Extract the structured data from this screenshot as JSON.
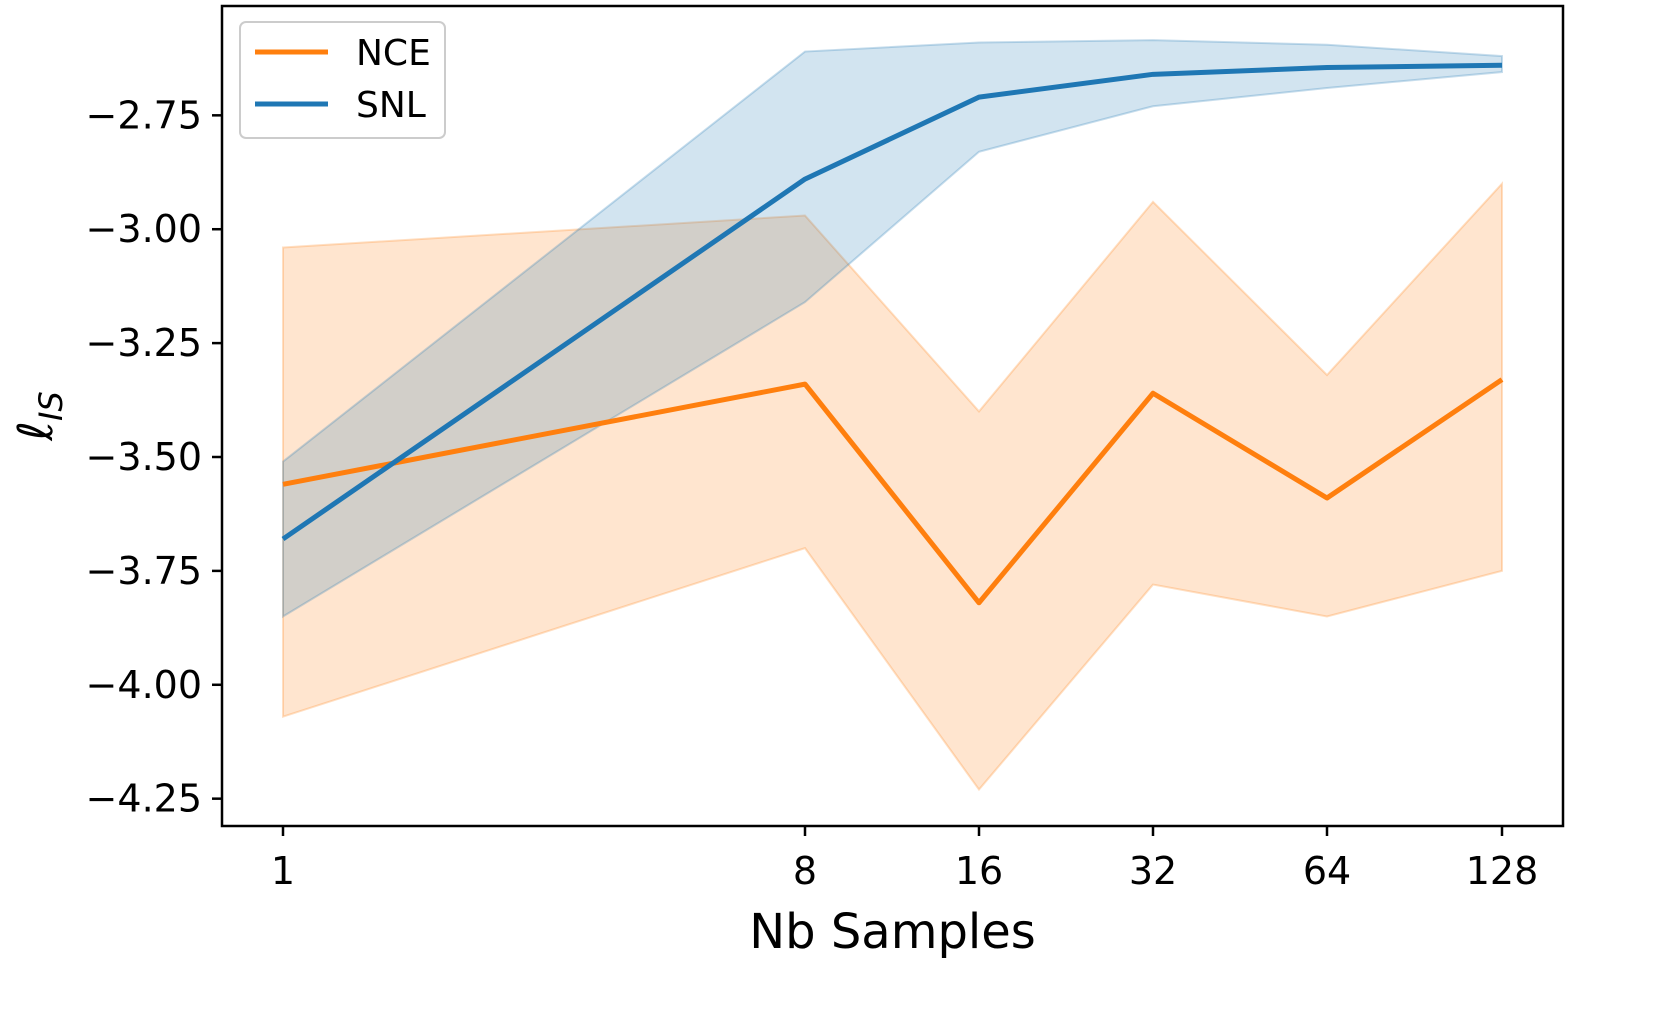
{
  "chart_data": {
    "type": "line",
    "title": "",
    "xlabel": "Nb Samples",
    "ylabel": "ℓ_IS",
    "ylabel_main": "ℓ",
    "ylabel_sub": "IS",
    "x": [
      1,
      8,
      16,
      32,
      64,
      128
    ],
    "x_tick_labels": [
      "1",
      "8",
      "16",
      "32",
      "64",
      "128"
    ],
    "y_ticks": [
      -4.25,
      -4.0,
      -3.75,
      -3.5,
      -3.25,
      -3.0,
      -2.75
    ],
    "y_tick_labels": [
      "−4.25",
      "−4.00",
      "−3.75",
      "−3.50",
      "−3.25",
      "−3.00",
      "−2.75"
    ],
    "ylim": [
      -4.31,
      -2.51
    ],
    "grid": false,
    "legend_position": "top-left",
    "series": [
      {
        "name": "NCE",
        "color": "#ff7f0e",
        "values": [
          -3.56,
          -3.34,
          -3.82,
          -3.36,
          -3.59,
          -3.33
        ],
        "lower": [
          -4.07,
          -3.7,
          -4.23,
          -3.78,
          -3.85,
          -3.75
        ],
        "upper": [
          -3.04,
          -2.97,
          -3.4,
          -2.94,
          -3.32,
          -2.9
        ]
      },
      {
        "name": "SNL",
        "color": "#1f77b4",
        "values": [
          -3.68,
          -2.89,
          -2.71,
          -2.66,
          -2.645,
          -2.64
        ],
        "lower": [
          -3.85,
          -3.16,
          -2.83,
          -2.73,
          -2.69,
          -2.655
        ],
        "upper": [
          -3.51,
          -2.61,
          -2.59,
          -2.585,
          -2.595,
          -2.62
        ]
      }
    ]
  }
}
